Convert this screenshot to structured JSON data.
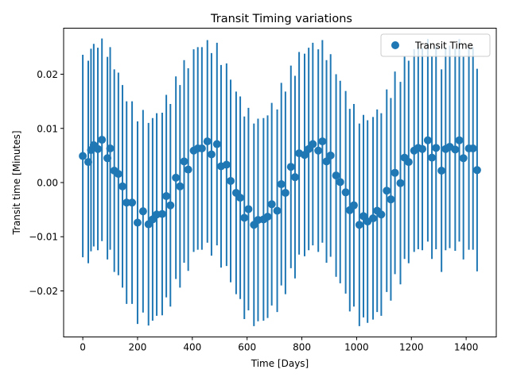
{
  "chart_data": {
    "type": "scatter",
    "title": "Transit Timing variations",
    "xlabel": "Time [Days]",
    "ylabel": "Transit time [Minutes]",
    "xlim": [
      -70,
      1510
    ],
    "ylim": [
      -0.0285,
      0.0285
    ],
    "x_ticks": [
      0,
      200,
      400,
      600,
      800,
      1000,
      1200,
      1400
    ],
    "x_tick_labels": [
      "0",
      "200",
      "400",
      "600",
      "800",
      "1000",
      "1200",
      "1400"
    ],
    "y_ticks": [
      -0.02,
      -0.01,
      0.0,
      0.01,
      0.02
    ],
    "y_tick_labels": [
      "−0.02",
      "−0.01",
      "0.00",
      "0.01",
      "0.02"
    ],
    "grid": false,
    "legend_position": "top-right",
    "error_bar_halfwidth": 0.0187,
    "series": [
      {
        "name": "Transit Time",
        "color": "#1f77b4",
        "x": [
          0,
          20,
          30,
          40,
          55,
          70,
          90,
          100,
          115,
          130,
          145,
          160,
          180,
          200,
          220,
          240,
          255,
          270,
          290,
          305,
          320,
          340,
          355,
          370,
          385,
          405,
          420,
          435,
          455,
          470,
          490,
          505,
          525,
          540,
          560,
          575,
          590,
          605,
          625,
          640,
          660,
          675,
          690,
          710,
          725,
          740,
          760,
          775,
          790,
          810,
          825,
          840,
          860,
          875,
          890,
          905,
          925,
          940,
          960,
          975,
          990,
          1010,
          1025,
          1040,
          1060,
          1075,
          1090,
          1110,
          1125,
          1140,
          1160,
          1175,
          1190,
          1210,
          1225,
          1240,
          1260,
          1275,
          1290,
          1310,
          1325,
          1340,
          1360,
          1375,
          1390,
          1410,
          1425,
          1440
        ],
        "y": [
          0.0049,
          0.0038,
          0.006,
          0.0069,
          0.0062,
          0.0079,
          0.0045,
          0.0063,
          0.0022,
          0.0016,
          -0.0007,
          -0.0037,
          -0.0037,
          -0.0074,
          -0.0053,
          -0.0077,
          -0.0068,
          -0.0059,
          -0.0058,
          -0.0025,
          -0.0042,
          0.0009,
          -0.0007,
          0.0039,
          0.0024,
          0.0059,
          0.0063,
          0.0063,
          0.0076,
          0.0052,
          0.0071,
          0.003,
          0.0033,
          0.0003,
          -0.0019,
          -0.0028,
          -0.0065,
          -0.0049,
          -0.0078,
          -0.0069,
          -0.0068,
          -0.0063,
          -0.004,
          -0.0052,
          -0.0003,
          -0.0019,
          0.0029,
          0.001,
          0.0054,
          0.0051,
          0.0062,
          0.0071,
          0.0059,
          0.0076,
          0.0039,
          0.005,
          0.0013,
          0.0001,
          -0.0018,
          -0.0051,
          -0.0042,
          -0.0078,
          -0.0062,
          -0.0072,
          -0.0066,
          -0.0052,
          -0.0059,
          -0.0015,
          -0.0031,
          0.0018,
          -0.0001,
          0.0046,
          0.0038,
          0.0059,
          0.0064,
          0.0062,
          0.0078,
          0.0046,
          0.0064,
          0.0022,
          0.0062,
          0.0066,
          0.0061,
          0.0078,
          0.0045,
          0.0063,
          0.0063,
          0.0023
        ]
      }
    ]
  }
}
